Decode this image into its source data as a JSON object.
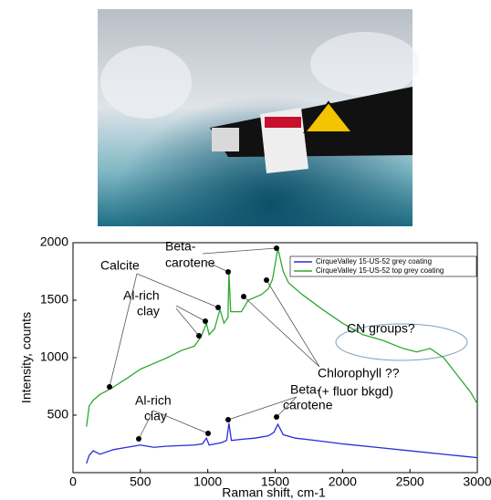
{
  "chart_data": {
    "type": "line",
    "xlabel": "Raman shift, cm-1",
    "ylabel": "Intensity, counts",
    "xlim": [
      0,
      3000
    ],
    "xticks": [
      0,
      500,
      1000,
      1500,
      2000,
      2500,
      3000
    ],
    "ylim": [
      0,
      2000
    ],
    "yticks": [
      500,
      1000,
      1500,
      2000
    ],
    "legend": "upper right",
    "series": [
      {
        "name": "CirqueValley 15-US-52 grey coating",
        "color": "#2b2bd6",
        "x": [
          100,
          120,
          150,
          200,
          300,
          400,
          500,
          600,
          700,
          800,
          900,
          960,
          990,
          1010,
          1100,
          1140,
          1157,
          1175,
          1250,
          1350,
          1450,
          1490,
          1520,
          1560,
          1650,
          1800,
          2000,
          2250,
          2500,
          2750,
          3000
        ],
        "values": [
          80,
          150,
          190,
          160,
          200,
          220,
          240,
          220,
          230,
          235,
          240,
          250,
          300,
          240,
          260,
          280,
          430,
          280,
          290,
          300,
          320,
          350,
          420,
          330,
          300,
          280,
          250,
          220,
          190,
          160,
          130
        ]
      },
      {
        "name": "CirqueValley 15-US-52 top grey coating",
        "color": "#2ea82e",
        "x": [
          100,
          120,
          150,
          200,
          280,
          400,
          500,
          600,
          700,
          800,
          900,
          950,
          990,
          1010,
          1050,
          1090,
          1120,
          1150,
          1157,
          1170,
          1250,
          1300,
          1400,
          1450,
          1480,
          1520,
          1560,
          1600,
          1700,
          1850,
          2000,
          2150,
          2300,
          2450,
          2550,
          2650,
          2750,
          2850,
          2950,
          3000
        ],
        "values": [
          400,
          580,
          630,
          680,
          730,
          820,
          900,
          950,
          1000,
          1060,
          1100,
          1180,
          1300,
          1200,
          1250,
          1420,
          1300,
          1350,
          1740,
          1400,
          1400,
          1500,
          1550,
          1600,
          1680,
          1950,
          1750,
          1650,
          1550,
          1420,
          1300,
          1200,
          1150,
          1080,
          1050,
          1080,
          1000,
          850,
          700,
          600
        ]
      }
    ],
    "annotations": [
      "Calcite",
      "Al-rich",
      "clay",
      "Beta-",
      "carotene",
      "Chlorophyll ??",
      "(+ fluor bkgd)",
      "CN groups?",
      "Al-rich",
      "clay",
      "Beta-",
      "carotene"
    ]
  }
}
